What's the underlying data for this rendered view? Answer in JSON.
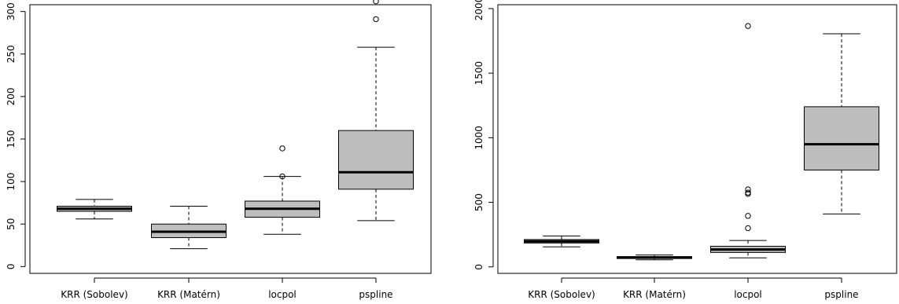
{
  "chart_data": [
    {
      "type": "box",
      "title": "",
      "xlabel": "",
      "ylabel": "",
      "ylim": [
        -8,
        308
      ],
      "yticks": [
        0,
        50,
        100,
        150,
        200,
        250,
        300
      ],
      "categories": [
        "KRR (Sobolev)",
        "KRR (Matérn)",
        "locpol",
        "pspline"
      ],
      "boxes": [
        {
          "whisker_low": 56,
          "q1": 65,
          "median": 68,
          "q3": 71,
          "whisker_high": 79,
          "outliers": []
        },
        {
          "whisker_low": 21,
          "q1": 34,
          "median": 41,
          "q3": 50,
          "whisker_high": 71,
          "outliers": []
        },
        {
          "whisker_low": 38,
          "q1": 58,
          "median": 68,
          "q3": 77,
          "whisker_high": 106,
          "outliers": [
            106,
            139
          ]
        },
        {
          "whisker_low": 54,
          "q1": 91,
          "median": 111,
          "q3": 160,
          "whisker_high": 258,
          "outliers": [
            291,
            312
          ]
        }
      ]
    },
    {
      "type": "box",
      "title": "",
      "xlabel": "",
      "ylabel": "",
      "ylim": [
        -50,
        2030
      ],
      "yticks": [
        0,
        500,
        1000,
        1500,
        2000
      ],
      "categories": [
        "KRR (Sobolev)",
        "KRR (Matérn)",
        "locpol",
        "pspline"
      ],
      "boxes": [
        {
          "whisker_low": 155,
          "q1": 185,
          "median": 198,
          "q3": 212,
          "whisker_high": 240,
          "outliers": []
        },
        {
          "whisker_low": 55,
          "q1": 65,
          "median": 72,
          "q3": 80,
          "whisker_high": 92,
          "outliers": []
        },
        {
          "whisker_low": 70,
          "q1": 112,
          "median": 135,
          "q3": 160,
          "whisker_high": 205,
          "outliers": [
            300,
            395,
            565,
            575,
            600,
            1865
          ]
        },
        {
          "whisker_low": 410,
          "q1": 750,
          "median": 950,
          "q3": 1240,
          "whisker_high": 1805,
          "outliers": []
        }
      ]
    }
  ]
}
